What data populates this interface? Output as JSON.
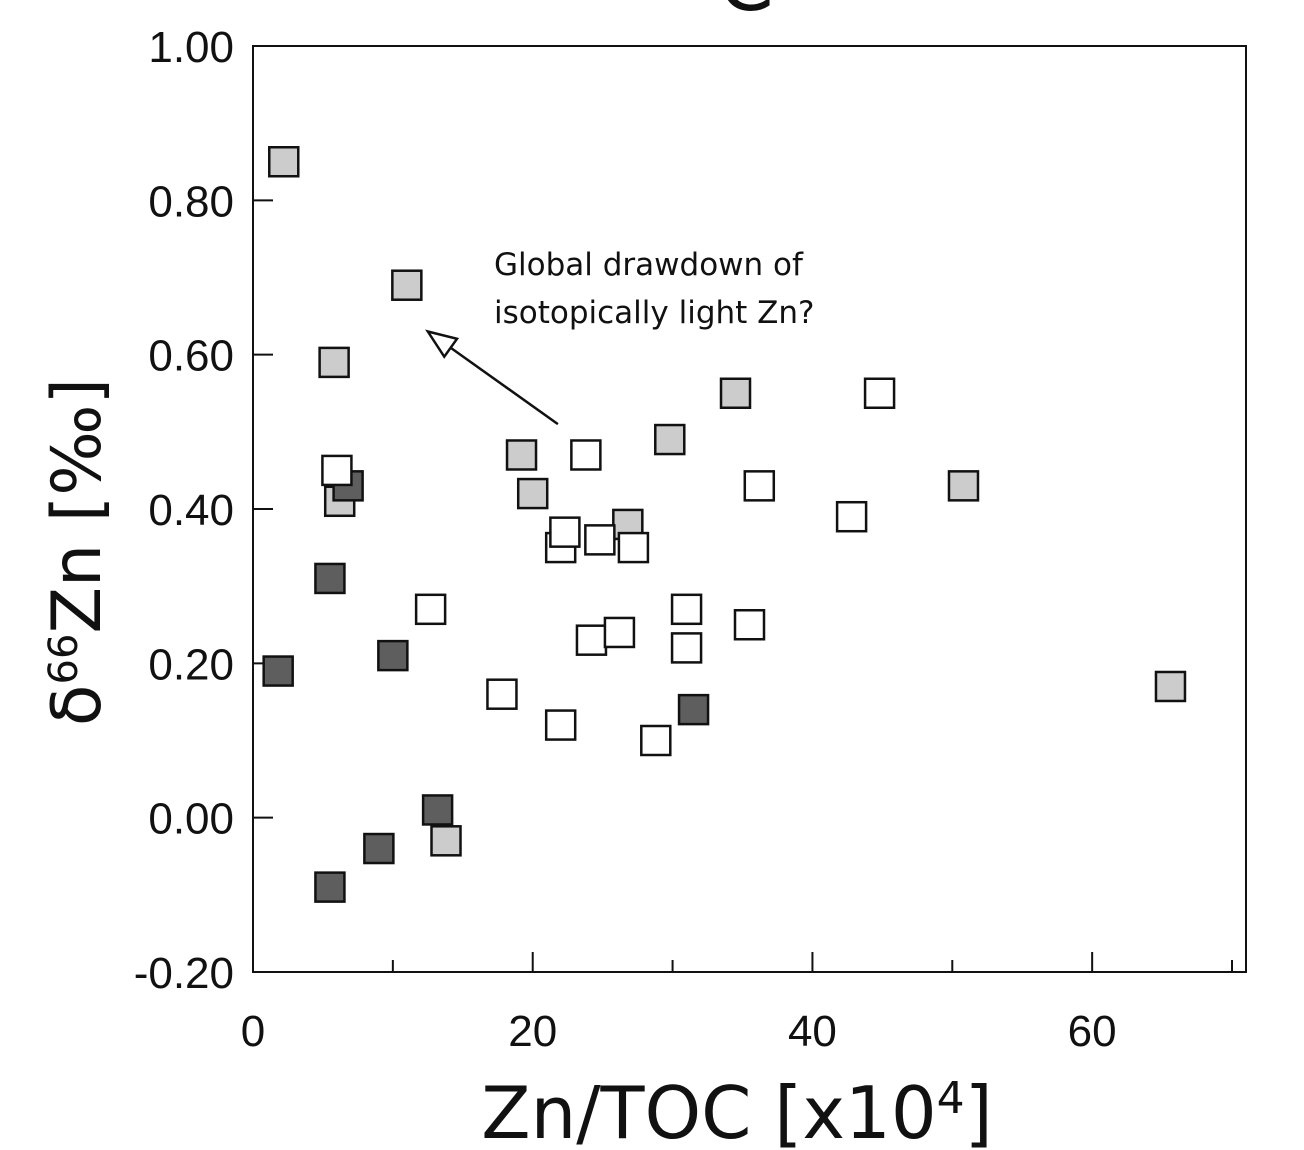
{
  "chart_data": {
    "type": "scatter",
    "title": "C",
    "xlabel": "Zn/TOC [x10",
    "xlabel_sup": "4",
    "xlabel_end": "]",
    "ylabel_prefix": "δ",
    "ylabel_sup": "66",
    "ylabel_main": "Zn [‰]",
    "xlim": [
      0,
      71
    ],
    "ylim": [
      -0.2,
      1.0
    ],
    "x_ticks": [
      0,
      20,
      40,
      60
    ],
    "x_tick_labels": [
      "0",
      "20",
      "40",
      "60"
    ],
    "x_minor_ticks": [
      10,
      30,
      50,
      70
    ],
    "y_ticks": [
      -0.2,
      0.0,
      0.2,
      0.4,
      0.6,
      0.8,
      1.0
    ],
    "y_tick_labels": [
      "-0.20",
      "0.00",
      "0.20",
      "0.40",
      "0.60",
      "0.80",
      "1.00"
    ],
    "grid": false,
    "legend": "none",
    "annotation": {
      "lines": [
        "Global drawdown of",
        "isotopically light Zn?"
      ],
      "arrow_from": [
        21.8,
        0.51
      ],
      "arrow_to": [
        12.5,
        0.63
      ]
    },
    "series": [
      {
        "fill": "#cccccc",
        "points": [
          [
            2.2,
            0.85
          ],
          [
            11.0,
            0.69
          ],
          [
            5.8,
            0.59
          ],
          [
            6.2,
            0.41
          ],
          [
            19.2,
            0.47
          ],
          [
            20.0,
            0.42
          ],
          [
            26.8,
            0.38
          ],
          [
            29.8,
            0.49
          ],
          [
            34.5,
            0.55
          ],
          [
            50.8,
            0.43
          ],
          [
            65.6,
            0.17
          ],
          [
            13.8,
            -0.03
          ]
        ]
      },
      {
        "fill": "#5e5e5e",
        "points": [
          [
            1.8,
            0.19
          ],
          [
            5.5,
            0.31
          ],
          [
            6.8,
            0.43
          ],
          [
            10.0,
            0.21
          ],
          [
            31.5,
            0.14
          ],
          [
            13.2,
            0.01
          ],
          [
            9.0,
            -0.04
          ],
          [
            5.5,
            -0.09
          ]
        ]
      },
      {
        "fill": "#ffffff",
        "points": [
          [
            6.0,
            0.45
          ],
          [
            12.7,
            0.27
          ],
          [
            17.8,
            0.16
          ],
          [
            22.0,
            0.12
          ],
          [
            22.0,
            0.35
          ],
          [
            22.3,
            0.37
          ],
          [
            23.8,
            0.47
          ],
          [
            24.2,
            0.23
          ],
          [
            24.8,
            0.36
          ],
          [
            26.2,
            0.24
          ],
          [
            27.2,
            0.35
          ],
          [
            28.8,
            0.1
          ],
          [
            31.0,
            0.27
          ],
          [
            31.0,
            0.22
          ],
          [
            35.5,
            0.25
          ],
          [
            36.2,
            0.43
          ],
          [
            42.8,
            0.39
          ],
          [
            44.8,
            0.55
          ]
        ]
      }
    ]
  }
}
